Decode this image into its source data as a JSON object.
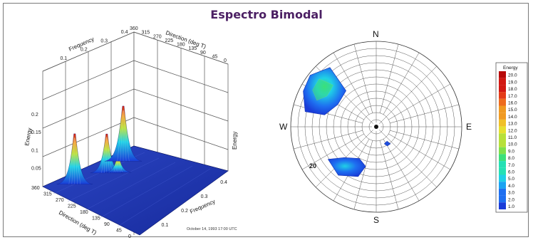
{
  "title": "Espectro Bimodal",
  "colors": {
    "title": "#4b1f63",
    "floor": "#1f35b6",
    "legend_scale": [
      "#1a3cd8",
      "#1e6ff0",
      "#1aa3f2",
      "#1fd0e6",
      "#25e0b4",
      "#3be07a",
      "#7ee04a",
      "#b7e03a",
      "#e6e030",
      "#f0c028",
      "#f09a22",
      "#ee6c1e",
      "#e43c18",
      "#d21812",
      "#b80a0a"
    ]
  },
  "chart_data": [
    {
      "type": "surface3d",
      "xlabel": "Frequency",
      "ylabel": "Direction (deg T)",
      "zlabel": "Energy",
      "top_labels": [
        "Frequency",
        "Direction (deg T)"
      ],
      "energy_ticks": [
        "0.2",
        "0.15",
        "0.1",
        "0.05"
      ],
      "frequency_ticks": [
        "0.1",
        "0.2",
        "0.3",
        "0.4"
      ],
      "direction_ticks": [
        "360",
        "315",
        "270",
        "225",
        "180",
        "135",
        "90",
        "45",
        "0"
      ],
      "peaks": [
        {
          "frequency": 0.08,
          "direction": 300,
          "energy": 0.22
        },
        {
          "frequency": 0.1,
          "direction": 190,
          "energy": 0.17
        },
        {
          "frequency": 0.13,
          "direction": 170,
          "energy": 0.07
        },
        {
          "frequency": 0.07,
          "direction": 100,
          "energy": 0.24
        }
      ],
      "caption": "October 14, 1993 17:00 UTC"
    },
    {
      "type": "polar",
      "cardinals": [
        "N",
        "E",
        "S",
        "W"
      ],
      "ring_label": "20",
      "regions": [
        {
          "direction": 300,
          "energy_max": 13
        },
        {
          "direction": 210,
          "energy_max": 5
        },
        {
          "direction": 145,
          "energy_max": 3
        }
      ],
      "legend": {
        "title": "Energy",
        "values": [
          "20.0",
          "19.0",
          "18.0",
          "17.0",
          "16.0",
          "15.0",
          "14.0",
          "13.0",
          "12.0",
          "11.0",
          "10.0",
          "9.0",
          "8.0",
          "7.0",
          "6.0",
          "5.0",
          "4.0",
          "3.0",
          "2.0",
          "1.0"
        ]
      }
    }
  ]
}
